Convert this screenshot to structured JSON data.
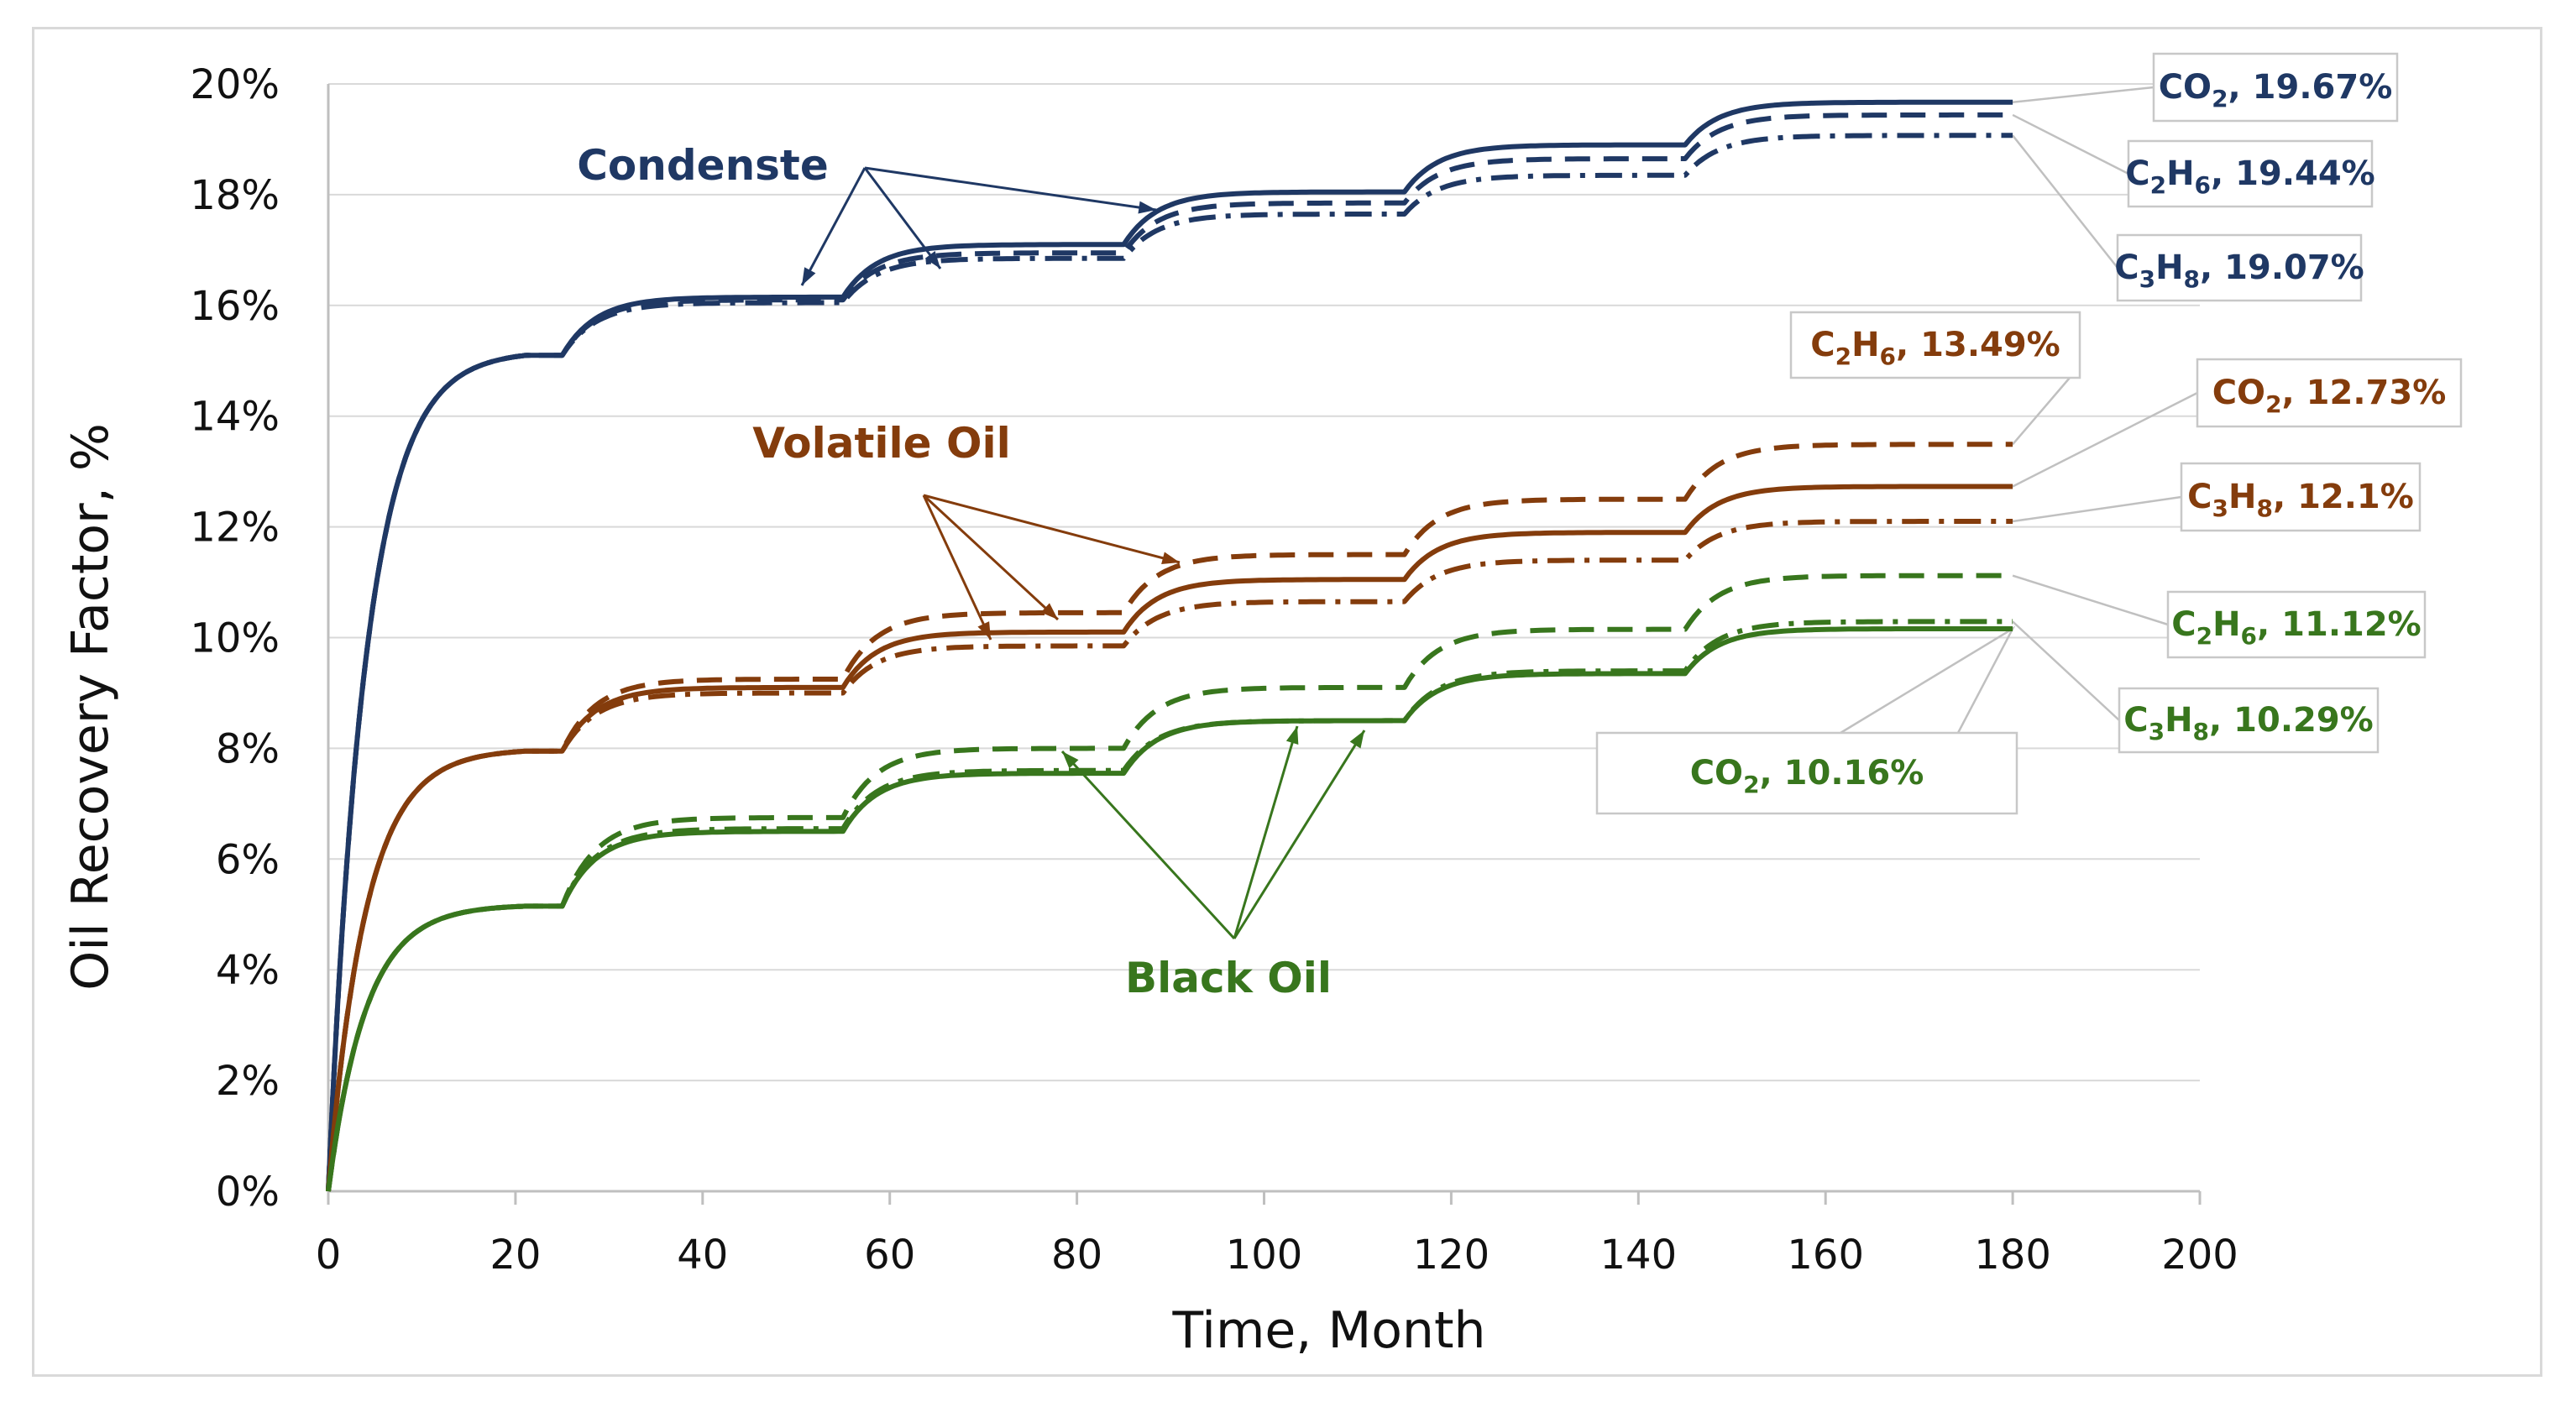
{
  "chart_data": {
    "type": "line",
    "title": "",
    "xlabel": "Time, Month",
    "ylabel": "Oil Recovery Factor, %",
    "xlim": [
      0,
      200
    ],
    "ylim": [
      0,
      20
    ],
    "x_ticks": [
      "0",
      "20",
      "40",
      "60",
      "80",
      "100",
      "120",
      "140",
      "160",
      "180",
      "200"
    ],
    "y_ticks": [
      "0%",
      "2%",
      "4%",
      "6%",
      "8%",
      "10%",
      "12%",
      "14%",
      "16%",
      "18%",
      "20%"
    ],
    "grid": "horizontal",
    "colors": {
      "condensate": "#1f3864",
      "volatile": "#843c0c",
      "black": "#38761d",
      "grid": "#d9d9d9",
      "label_border": "#c8c8c8"
    },
    "groups": [
      {
        "key": "condensate",
        "label": "Condenste"
      },
      {
        "key": "volatile",
        "label": "Volatile Oil"
      },
      {
        "key": "black",
        "label": "Black Oil"
      }
    ],
    "series": [
      {
        "name": "Condensate CO2",
        "group": "condensate",
        "dash": "solid",
        "baselines": [
          15.1,
          16.15,
          17.1,
          18.05,
          18.9
        ],
        "final": 19.67,
        "label": {
          "pre": "CO",
          "sub": "2",
          "mid": "",
          "sub2": "",
          "post": ", 19.67%"
        }
      },
      {
        "name": "Condensate C2H6",
        "group": "condensate",
        "dash": "dash",
        "baselines": [
          15.1,
          16.1,
          16.95,
          17.85,
          18.65
        ],
        "final": 19.44,
        "label": {
          "pre": "C",
          "sub": "2",
          "mid": "H",
          "sub2": "6",
          "post": ", 19.44%"
        }
      },
      {
        "name": "Condensate C3H8",
        "group": "condensate",
        "dash": "dashdot",
        "baselines": [
          15.1,
          16.05,
          16.85,
          17.65,
          18.35
        ],
        "final": 19.07,
        "label": {
          "pre": "C",
          "sub": "3",
          "mid": "H",
          "sub2": "8",
          "post": ", 19.07%"
        }
      },
      {
        "name": "Volatile Oil C2H6",
        "group": "volatile",
        "dash": "dash",
        "baselines": [
          7.95,
          9.25,
          10.45,
          11.5,
          12.5
        ],
        "final": 13.49,
        "label": {
          "pre": "C",
          "sub": "2",
          "mid": "H",
          "sub2": "6",
          "post": ", 13.49%"
        }
      },
      {
        "name": "Volatile Oil CO2",
        "group": "volatile",
        "dash": "solid",
        "baselines": [
          7.95,
          9.1,
          10.1,
          11.05,
          11.9
        ],
        "final": 12.73,
        "label": {
          "pre": "CO",
          "sub": "2",
          "mid": "",
          "sub2": "",
          "post": ", 12.73%"
        }
      },
      {
        "name": "Volatile Oil C3H8",
        "group": "volatile",
        "dash": "dashdot",
        "baselines": [
          7.95,
          9.0,
          9.85,
          10.65,
          11.4
        ],
        "final": 12.1,
        "label": {
          "pre": "C",
          "sub": "3",
          "mid": "H",
          "sub2": "8",
          "post": ", 12.1%"
        }
      },
      {
        "name": "Black Oil C2H6",
        "group": "black",
        "dash": "dash",
        "baselines": [
          5.15,
          6.75,
          8.0,
          9.1,
          10.15
        ],
        "final": 11.12,
        "label": {
          "pre": "C",
          "sub": "2",
          "mid": "H",
          "sub2": "6",
          "post": ", 11.12%"
        }
      },
      {
        "name": "Black Oil C3H8",
        "group": "black",
        "dash": "dashdot",
        "baselines": [
          5.15,
          6.55,
          7.6,
          8.5,
          9.4
        ],
        "final": 10.29,
        "label": {
          "pre": "C",
          "sub": "3",
          "mid": "H",
          "sub2": "8",
          "post": ", 10.29%"
        }
      },
      {
        "name": "Black Oil CO2",
        "group": "black",
        "dash": "solid",
        "baselines": [
          5.15,
          6.5,
          7.55,
          8.5,
          9.35
        ],
        "final": 10.16,
        "label": {
          "pre": "CO",
          "sub": "2",
          "mid": "",
          "sub2": "",
          "post": ", 10.16%"
        }
      }
    ]
  }
}
